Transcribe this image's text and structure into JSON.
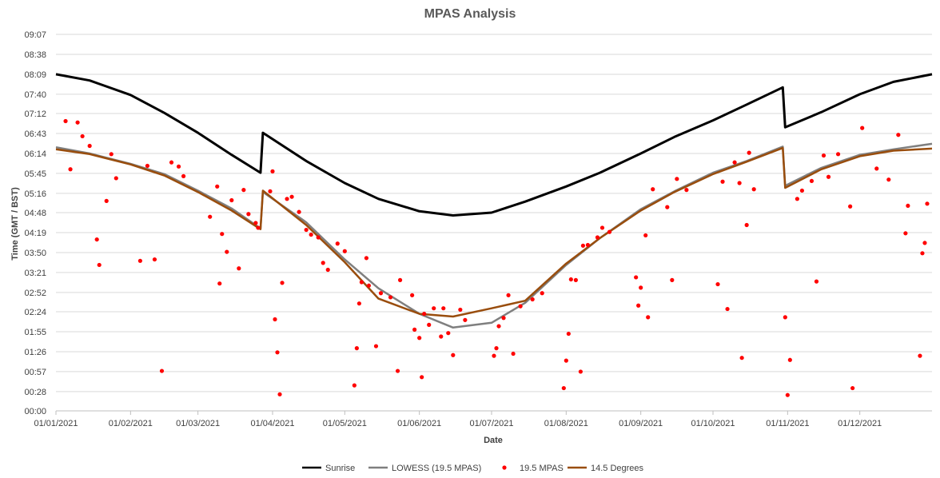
{
  "chart_data": {
    "type": "line",
    "title": "MPAS Analysis",
    "xlabel": "Date",
    "ylabel": "Time (GMT / BST)",
    "x_ticks": [
      "01/01/2021",
      "01/02/2021",
      "01/03/2021",
      "01/04/2021",
      "01/05/2021",
      "01/06/2021",
      "01/07/2021",
      "01/08/2021",
      "01/09/2021",
      "01/10/2021",
      "01/11/2021",
      "01/12/2021"
    ],
    "y_ticks": [
      "00:00",
      "00:28",
      "00:57",
      "01:26",
      "01:55",
      "02:24",
      "02:52",
      "03:21",
      "03:50",
      "04:19",
      "04:48",
      "05:16",
      "05:45",
      "06:14",
      "06:43",
      "07:12",
      "07:40",
      "08:09",
      "08:38",
      "09:07"
    ],
    "xlim_days": [
      0,
      364
    ],
    "ylim_minutes": [
      0,
      547
    ],
    "grid": true,
    "legend_position": "bottom",
    "series": [
      {
        "name": "Sunrise",
        "kind": "line",
        "color": "#000000",
        "points": [
          [
            "01/01/2021",
            "08:09"
          ],
          [
            "15/01/2021",
            "08:00"
          ],
          [
            "01/02/2021",
            "07:39"
          ],
          [
            "15/02/2021",
            "07:13"
          ],
          [
            "01/03/2021",
            "06:44"
          ],
          [
            "15/03/2021",
            "06:12"
          ],
          [
            "27/03/2021",
            "05:46"
          ],
          [
            "28/03/2021",
            "06:44"
          ],
          [
            "15/04/2021",
            "06:03"
          ],
          [
            "01/05/2021",
            "05:31"
          ],
          [
            "15/05/2021",
            "05:08"
          ],
          [
            "01/06/2021",
            "04:50"
          ],
          [
            "15/06/2021",
            "04:44"
          ],
          [
            "01/07/2021",
            "04:48"
          ],
          [
            "15/07/2021",
            "05:04"
          ],
          [
            "01/08/2021",
            "05:26"
          ],
          [
            "15/08/2021",
            "05:46"
          ],
          [
            "01/09/2021",
            "06:14"
          ],
          [
            "15/09/2021",
            "06:38"
          ],
          [
            "01/10/2021",
            "07:02"
          ],
          [
            "15/10/2021",
            "07:25"
          ],
          [
            "30/10/2021",
            "07:50"
          ],
          [
            "31/10/2021",
            "06:52"
          ],
          [
            "15/11/2021",
            "07:14"
          ],
          [
            "01/12/2021",
            "07:40"
          ],
          [
            "15/12/2021",
            "07:58"
          ],
          [
            "31/12/2021",
            "08:09"
          ]
        ]
      },
      {
        "name": "LOWESS (19.5 MPAS)",
        "kind": "line",
        "color": "#7f7f7f",
        "points": [
          [
            "01/01/2021",
            "06:23"
          ],
          [
            "15/01/2021",
            "06:14"
          ],
          [
            "01/02/2021",
            "05:59"
          ],
          [
            "15/02/2021",
            "05:44"
          ],
          [
            "01/03/2021",
            "05:20"
          ],
          [
            "15/03/2021",
            "04:54"
          ],
          [
            "27/03/2021",
            "04:25"
          ],
          [
            "28/03/2021",
            "05:18"
          ],
          [
            "15/04/2021",
            "04:34"
          ],
          [
            "01/05/2021",
            "03:40"
          ],
          [
            "15/05/2021",
            "02:58"
          ],
          [
            "01/06/2021",
            "02:21"
          ],
          [
            "15/06/2021",
            "02:01"
          ],
          [
            "01/07/2021",
            "02:08"
          ],
          [
            "15/07/2021",
            "02:37"
          ],
          [
            "01/08/2021",
            "03:32"
          ],
          [
            "15/08/2021",
            "04:11"
          ],
          [
            "01/09/2021",
            "04:53"
          ],
          [
            "15/09/2021",
            "05:19"
          ],
          [
            "01/10/2021",
            "05:46"
          ],
          [
            "15/10/2021",
            "06:03"
          ],
          [
            "30/10/2021",
            "06:24"
          ],
          [
            "31/10/2021",
            "05:27"
          ],
          [
            "15/11/2021",
            "05:53"
          ],
          [
            "01/12/2021",
            "06:12"
          ],
          [
            "15/12/2021",
            "06:20"
          ],
          [
            "31/12/2021",
            "06:28"
          ]
        ]
      },
      {
        "name": "19.5 MPAS",
        "kind": "scatter",
        "color": "#ff0000",
        "points": [
          [
            "05/01/2021",
            "07:01"
          ],
          [
            "07/01/2021",
            "05:51"
          ],
          [
            "10/01/2021",
            "06:59"
          ],
          [
            "12/01/2021",
            "06:39"
          ],
          [
            "15/01/2021",
            "06:25"
          ],
          [
            "18/01/2021",
            "04:09"
          ],
          [
            "19/01/2021",
            "03:32"
          ],
          [
            "22/01/2021",
            "05:05"
          ],
          [
            "24/01/2021",
            "06:13"
          ],
          [
            "26/01/2021",
            "05:38"
          ],
          [
            "05/02/2021",
            "03:38"
          ],
          [
            "08/02/2021",
            "05:56"
          ],
          [
            "11/02/2021",
            "03:40"
          ],
          [
            "14/02/2021",
            "00:58"
          ],
          [
            "18/02/2021",
            "06:01"
          ],
          [
            "21/02/2021",
            "05:55"
          ],
          [
            "23/02/2021",
            "05:41"
          ],
          [
            "06/03/2021",
            "04:42"
          ],
          [
            "09/03/2021",
            "05:26"
          ],
          [
            "10/03/2021",
            "03:05"
          ],
          [
            "11/03/2021",
            "04:17"
          ],
          [
            "13/03/2021",
            "03:51"
          ],
          [
            "15/03/2021",
            "05:06"
          ],
          [
            "18/03/2021",
            "03:27"
          ],
          [
            "20/03/2021",
            "05:21"
          ],
          [
            "22/03/2021",
            "04:46"
          ],
          [
            "25/03/2021",
            "04:33"
          ],
          [
            "26/03/2021",
            "04:26"
          ],
          [
            "31/03/2021",
            "05:19"
          ],
          [
            "01/04/2021",
            "05:48"
          ],
          [
            "02/04/2021",
            "02:13"
          ],
          [
            "03/04/2021",
            "01:25"
          ],
          [
            "04/04/2021",
            "00:24"
          ],
          [
            "05/04/2021",
            "03:06"
          ],
          [
            "07/04/2021",
            "05:08"
          ],
          [
            "09/04/2021",
            "05:11"
          ],
          [
            "12/04/2021",
            "04:49"
          ],
          [
            "15/04/2021",
            "04:23"
          ],
          [
            "17/04/2021",
            "04:16"
          ],
          [
            "20/04/2021",
            "04:12"
          ],
          [
            "22/04/2021",
            "03:35"
          ],
          [
            "24/04/2021",
            "03:25"
          ],
          [
            "28/04/2021",
            "04:03"
          ],
          [
            "01/05/2021",
            "03:52"
          ],
          [
            "05/05/2021",
            "00:37"
          ],
          [
            "06/05/2021",
            "01:31"
          ],
          [
            "07/05/2021",
            "02:36"
          ],
          [
            "08/05/2021",
            "03:07"
          ],
          [
            "10/05/2021",
            "03:42"
          ],
          [
            "11/05/2021",
            "03:02"
          ],
          [
            "14/05/2021",
            "01:34"
          ],
          [
            "16/05/2021",
            "02:51"
          ],
          [
            "20/05/2021",
            "02:45"
          ],
          [
            "23/05/2021",
            "00:58"
          ],
          [
            "24/05/2021",
            "03:10"
          ],
          [
            "29/05/2021",
            "02:48"
          ],
          [
            "30/05/2021",
            "01:58"
          ],
          [
            "01/06/2021",
            "01:46"
          ],
          [
            "02/06/2021",
            "00:49"
          ],
          [
            "03/06/2021",
            "02:21"
          ],
          [
            "05/06/2021",
            "02:05"
          ],
          [
            "07/06/2021",
            "02:29"
          ],
          [
            "10/06/2021",
            "01:48"
          ],
          [
            "11/06/2021",
            "02:29"
          ],
          [
            "13/06/2021",
            "01:53"
          ],
          [
            "15/06/2021",
            "01:21"
          ],
          [
            "18/06/2021",
            "02:27"
          ],
          [
            "20/06/2021",
            "02:12"
          ],
          [
            "02/07/2021",
            "01:20"
          ],
          [
            "03/07/2021",
            "01:31"
          ],
          [
            "04/07/2021",
            "02:03"
          ],
          [
            "06/07/2021",
            "02:15"
          ],
          [
            "08/07/2021",
            "02:48"
          ],
          [
            "10/07/2021",
            "01:23"
          ],
          [
            "13/07/2021",
            "02:32"
          ],
          [
            "18/07/2021",
            "02:42"
          ],
          [
            "22/07/2021",
            "02:51"
          ],
          [
            "31/07/2021",
            "00:33"
          ],
          [
            "01/08/2021",
            "01:13"
          ],
          [
            "02/08/2021",
            "01:52"
          ],
          [
            "03/08/2021",
            "03:11"
          ],
          [
            "05/08/2021",
            "03:10"
          ],
          [
            "07/08/2021",
            "00:57"
          ],
          [
            "08/08/2021",
            "04:00"
          ],
          [
            "10/08/2021",
            "04:01"
          ],
          [
            "14/08/2021",
            "04:12"
          ],
          [
            "16/08/2021",
            "04:26"
          ],
          [
            "19/08/2021",
            "04:20"
          ],
          [
            "30/08/2021",
            "03:14"
          ],
          [
            "31/08/2021",
            "02:33"
          ],
          [
            "01/09/2021",
            "02:59"
          ],
          [
            "03/09/2021",
            "04:15"
          ],
          [
            "04/09/2021",
            "02:16"
          ],
          [
            "06/09/2021",
            "05:22"
          ],
          [
            "12/09/2021",
            "04:56"
          ],
          [
            "14/09/2021",
            "03:10"
          ],
          [
            "16/09/2021",
            "05:37"
          ],
          [
            "20/09/2021",
            "05:21"
          ],
          [
            "03/10/2021",
            "03:04"
          ],
          [
            "05/10/2021",
            "05:33"
          ],
          [
            "07/10/2021",
            "02:28"
          ],
          [
            "10/10/2021",
            "06:01"
          ],
          [
            "12/10/2021",
            "05:31"
          ],
          [
            "13/10/2021",
            "01:17"
          ],
          [
            "15/10/2021",
            "04:30"
          ],
          [
            "16/10/2021",
            "06:15"
          ],
          [
            "18/10/2021",
            "05:22"
          ],
          [
            "31/10/2021",
            "02:16"
          ],
          [
            "01/11/2021",
            "00:23"
          ],
          [
            "02/11/2021",
            "01:14"
          ],
          [
            "05/11/2021",
            "05:08"
          ],
          [
            "07/11/2021",
            "05:20"
          ],
          [
            "11/11/2021",
            "05:34"
          ],
          [
            "13/11/2021",
            "03:08"
          ],
          [
            "16/11/2021",
            "06:11"
          ],
          [
            "18/11/2021",
            "05:40"
          ],
          [
            "22/11/2021",
            "06:13"
          ],
          [
            "27/11/2021",
            "04:57"
          ],
          [
            "28/11/2021",
            "00:33"
          ],
          [
            "02/12/2021",
            "06:51"
          ],
          [
            "08/12/2021",
            "05:52"
          ],
          [
            "13/12/2021",
            "05:36"
          ],
          [
            "17/12/2021",
            "06:41"
          ],
          [
            "20/12/2021",
            "04:18"
          ],
          [
            "21/12/2021",
            "04:58"
          ],
          [
            "26/12/2021",
            "01:20"
          ],
          [
            "27/12/2021",
            "03:49"
          ],
          [
            "28/12/2021",
            "04:04"
          ],
          [
            "29/12/2021",
            "05:01"
          ]
        ]
      },
      {
        "name": "14.5 Degrees",
        "kind": "line",
        "color": "#994d0d",
        "points": [
          [
            "01/01/2021",
            "06:20"
          ],
          [
            "15/01/2021",
            "06:13"
          ],
          [
            "01/02/2021",
            "05:58"
          ],
          [
            "15/02/2021",
            "05:42"
          ],
          [
            "01/03/2021",
            "05:18"
          ],
          [
            "15/03/2021",
            "04:51"
          ],
          [
            "27/03/2021",
            "04:24"
          ],
          [
            "28/03/2021",
            "05:20"
          ],
          [
            "15/04/2021",
            "04:30"
          ],
          [
            "01/05/2021",
            "03:36"
          ],
          [
            "15/05/2021",
            "02:43"
          ],
          [
            "01/06/2021",
            "02:21"
          ],
          [
            "15/06/2021",
            "02:17"
          ],
          [
            "01/07/2021",
            "02:29"
          ],
          [
            "15/07/2021",
            "02:40"
          ],
          [
            "01/08/2021",
            "03:34"
          ],
          [
            "15/08/2021",
            "04:11"
          ],
          [
            "01/09/2021",
            "04:51"
          ],
          [
            "15/09/2021",
            "05:18"
          ],
          [
            "01/10/2021",
            "05:44"
          ],
          [
            "15/10/2021",
            "06:02"
          ],
          [
            "30/10/2021",
            "06:22"
          ],
          [
            "31/10/2021",
            "05:24"
          ],
          [
            "15/11/2021",
            "05:51"
          ],
          [
            "01/12/2021",
            "06:10"
          ],
          [
            "15/12/2021",
            "06:18"
          ],
          [
            "31/12/2021",
            "06:21"
          ]
        ]
      }
    ]
  }
}
